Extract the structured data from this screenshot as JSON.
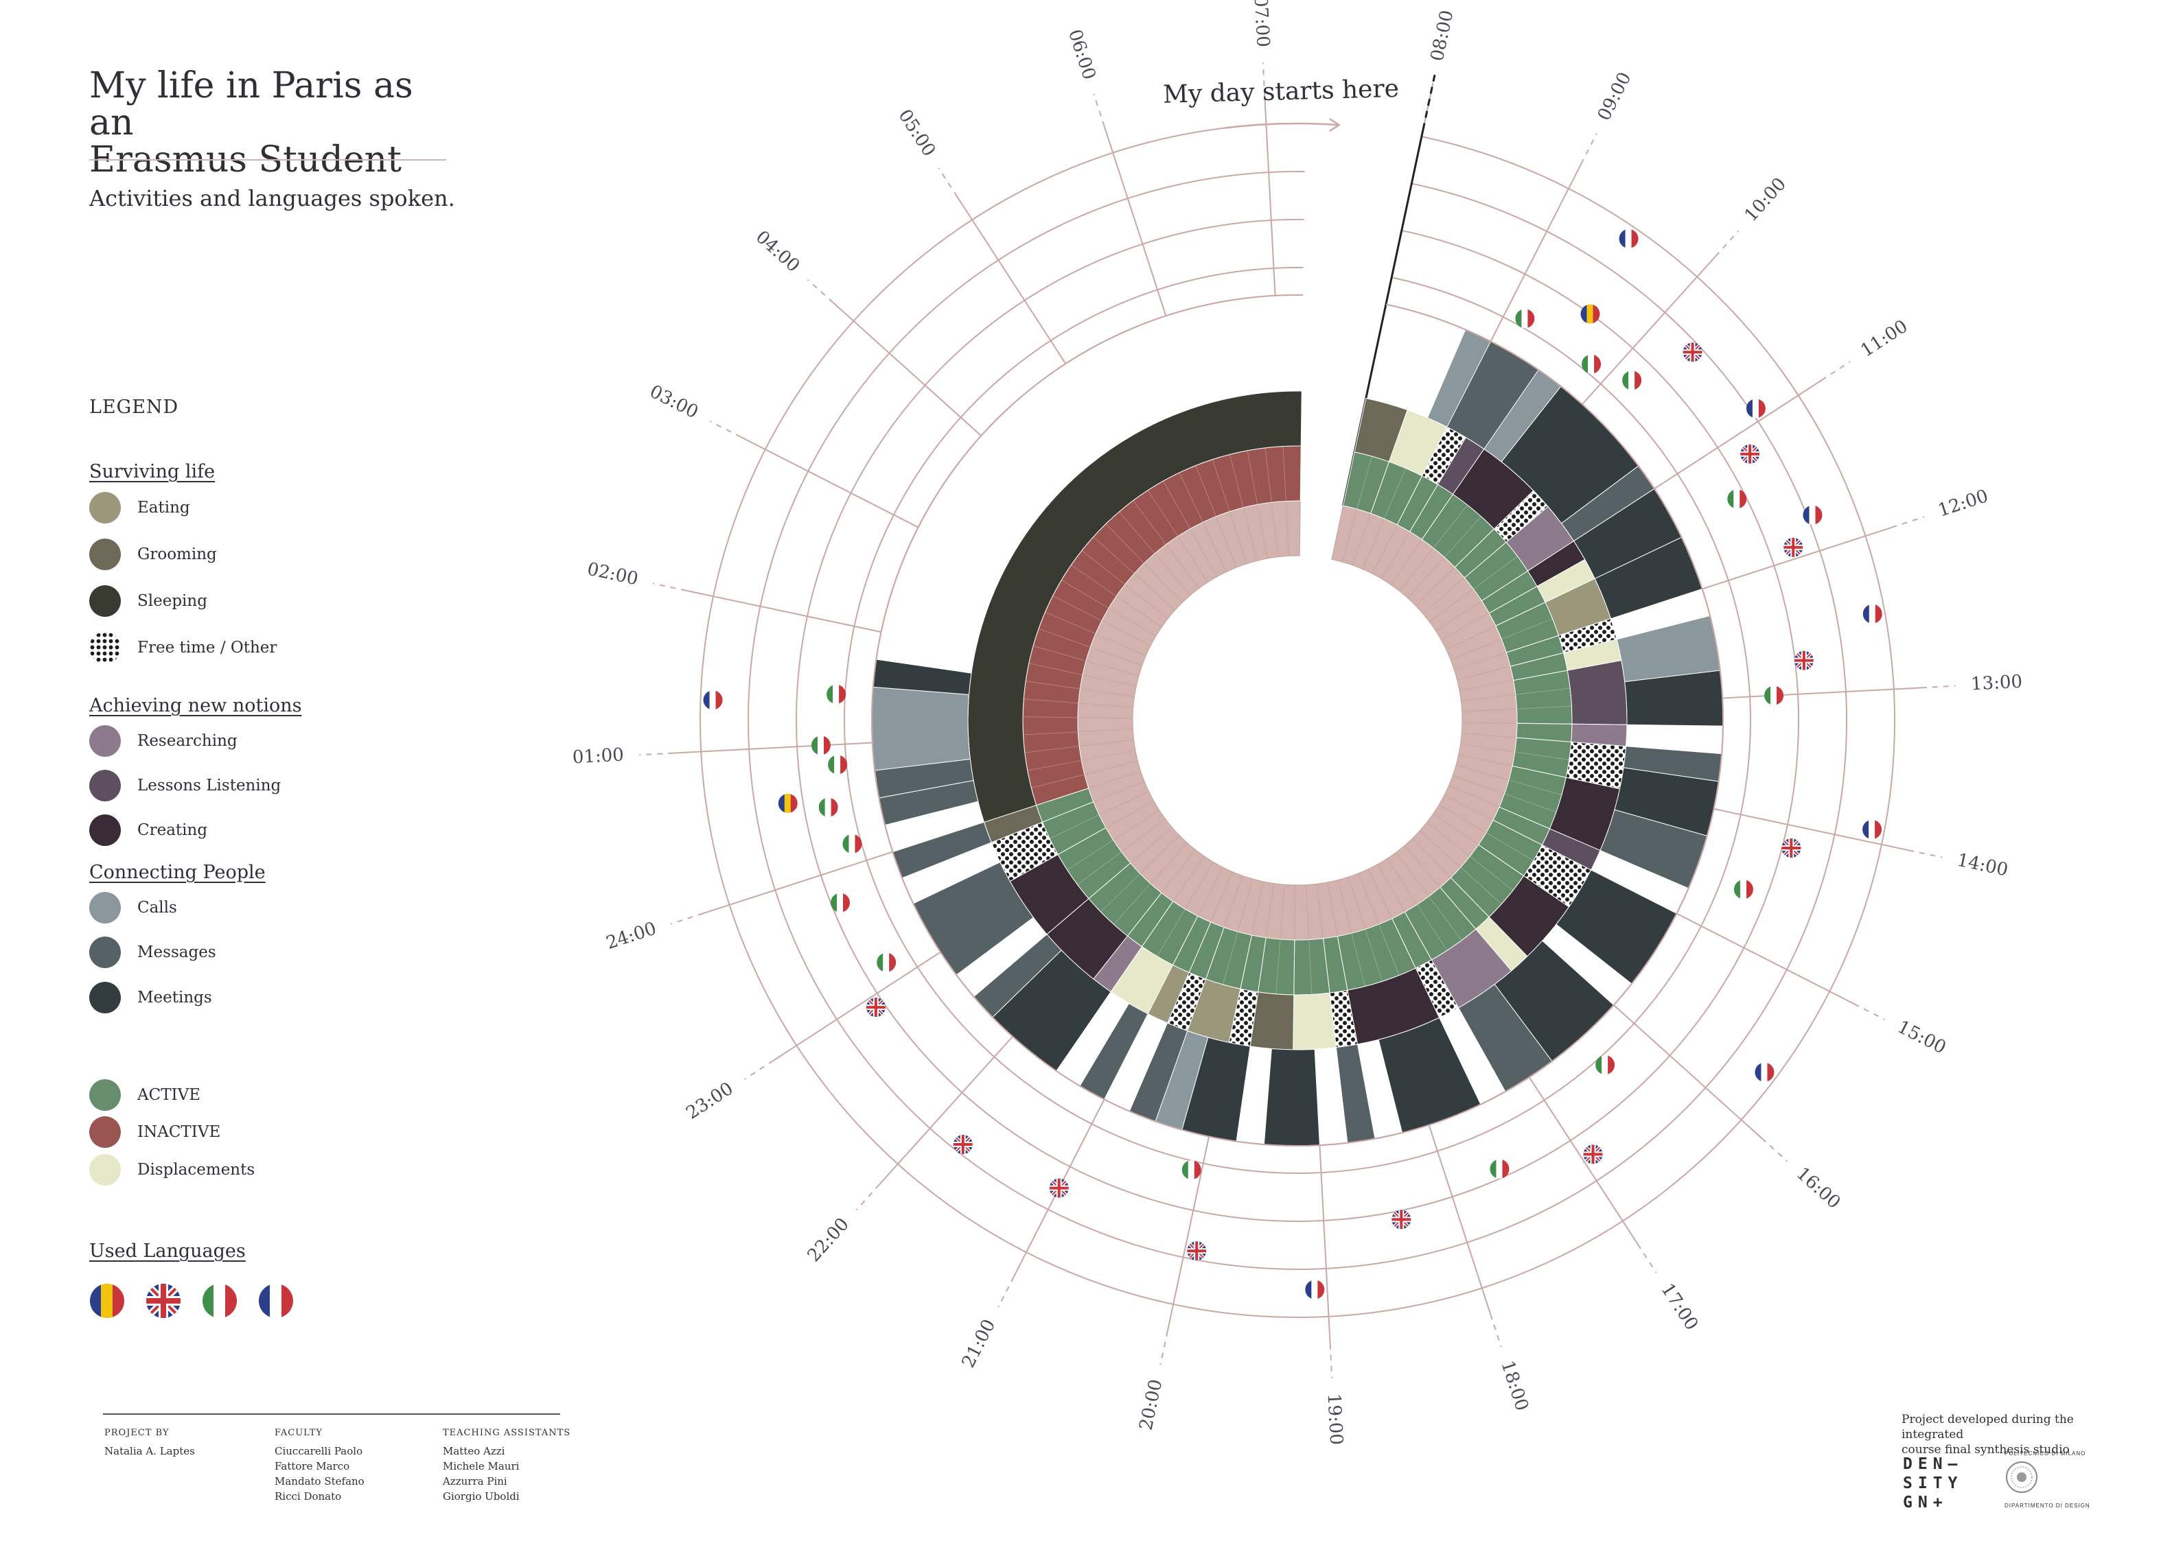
{
  "header": {
    "title_line1": "My life in Paris as an",
    "title_line2": "Erasmus Student",
    "subtitle": "Activities and languages spoken."
  },
  "legend": {
    "heading": "LEGEND",
    "sections": {
      "surviving": "Surviving life",
      "notions": "Achieving new notions",
      "people": "Connecting People",
      "languages": "Used Languages"
    },
    "items": {
      "eating": "Eating",
      "grooming": "Grooming",
      "sleeping": "Sleeping",
      "freetime": "Free time / Other",
      "researching": "Researching",
      "lessons": "Lessons Listening",
      "creating": "Creating",
      "calls": "Calls",
      "messages": "Messages",
      "meetings": "Meetings",
      "active": "ACTIVE",
      "inactive": "INACTIVE",
      "displacements": "Displacements"
    }
  },
  "colors": {
    "eating": "#9a977b",
    "grooming": "#6d6959",
    "sleeping": "#393a32",
    "researching": "#8d7a8c",
    "lessons": "#5e4f60",
    "creating": "#3a2c37",
    "calls": "#8a979d",
    "messages": "#566166",
    "meetings": "#333c3f",
    "active": "#678e6c",
    "inactive": "#9a5550",
    "displacements": "#e6e9c9",
    "inner": "#d3b3ae",
    "grid": "#c9a8a6"
  },
  "chart_data": {
    "type": "radial",
    "annotation": "My day starts here",
    "hour_labels": [
      "08:00",
      "09:00",
      "10:00",
      "11:00",
      "12:00",
      "13:00",
      "14:00",
      "15:00",
      "16:00",
      "17:00",
      "18:00",
      "19:00",
      "20:00",
      "21:00",
      "22:00",
      "23:00",
      "24:00",
      "01:00",
      "02:00",
      "03:00",
      "04:00",
      "05:00",
      "06:00",
      "07:00"
    ],
    "activities": [
      {
        "start": "08:00",
        "end": "08:30",
        "activity": "grooming",
        "state": "active"
      },
      {
        "start": "08:30",
        "end": "09:00",
        "activity": "displacements",
        "state": "active"
      },
      {
        "start": "09:00",
        "end": "09:15",
        "activity": "freetime",
        "state": "active"
      },
      {
        "start": "09:15",
        "end": "09:30",
        "activity": "lessons",
        "state": "active"
      },
      {
        "start": "09:30",
        "end": "10:15",
        "activity": "creating",
        "state": "active"
      },
      {
        "start": "10:15",
        "end": "10:30",
        "activity": "freetime",
        "state": "active"
      },
      {
        "start": "10:30",
        "end": "11:00",
        "activity": "researching",
        "state": "active"
      },
      {
        "start": "11:00",
        "end": "11:15",
        "activity": "creating",
        "state": "active"
      },
      {
        "start": "11:15",
        "end": "11:30",
        "activity": "displacements",
        "state": "active"
      },
      {
        "start": "11:30",
        "end": "12:00",
        "activity": "eating",
        "state": "active"
      },
      {
        "start": "12:00",
        "end": "12:15",
        "activity": "freetime",
        "state": "active"
      },
      {
        "start": "12:15",
        "end": "12:30",
        "activity": "displacements",
        "state": "active"
      },
      {
        "start": "12:30",
        "end": "13:15",
        "activity": "lessons",
        "state": "active"
      },
      {
        "start": "13:15",
        "end": "13:30",
        "activity": "researching",
        "state": "active"
      },
      {
        "start": "13:30",
        "end": "14:00",
        "activity": "freetime",
        "state": "active"
      },
      {
        "start": "14:00",
        "end": "14:45",
        "activity": "creating",
        "state": "active"
      },
      {
        "start": "14:45",
        "end": "15:00",
        "activity": "lessons",
        "state": "active"
      },
      {
        "start": "15:00",
        "end": "15:30",
        "activity": "freetime",
        "state": "active"
      },
      {
        "start": "15:30",
        "end": "16:15",
        "activity": "creating",
        "state": "active"
      },
      {
        "start": "16:15",
        "end": "16:30",
        "activity": "displacements",
        "state": "active"
      },
      {
        "start": "16:30",
        "end": "17:15",
        "activity": "researching",
        "state": "active"
      },
      {
        "start": "17:15",
        "end": "17:30",
        "activity": "freetime",
        "state": "active"
      },
      {
        "start": "17:30",
        "end": "18:30",
        "activity": "creating",
        "state": "active"
      },
      {
        "start": "18:30",
        "end": "18:45",
        "activity": "freetime",
        "state": "active"
      },
      {
        "start": "18:45",
        "end": "19:15",
        "activity": "displacements",
        "state": "active"
      },
      {
        "start": "19:15",
        "end": "19:45",
        "activity": "grooming",
        "state": "active"
      },
      {
        "start": "19:45",
        "end": "20:00",
        "activity": "freetime",
        "state": "active"
      },
      {
        "start": "20:00",
        "end": "20:30",
        "activity": "eating",
        "state": "active"
      },
      {
        "start": "20:30",
        "end": "20:45",
        "activity": "freetime",
        "state": "active"
      },
      {
        "start": "20:45",
        "end": "21:00",
        "activity": "eating",
        "state": "active"
      },
      {
        "start": "21:00",
        "end": "21:30",
        "activity": "displacements",
        "state": "active"
      },
      {
        "start": "21:30",
        "end": "21:45",
        "activity": "researching",
        "state": "active"
      },
      {
        "start": "21:45",
        "end": "22:30",
        "activity": "creating",
        "state": "active"
      },
      {
        "start": "22:30",
        "end": "23:15",
        "activity": "creating",
        "state": "active"
      },
      {
        "start": "23:15",
        "end": "23:45",
        "activity": "freetime",
        "state": "active"
      },
      {
        "start": "23:45",
        "end": "24:00",
        "activity": "grooming",
        "state": "active"
      },
      {
        "start": "24:00",
        "end": "07:15",
        "activity": "sleeping",
        "state": "inactive"
      }
    ],
    "communications": [
      {
        "start": "08:45",
        "end": "09:45",
        "type": "calls"
      },
      {
        "start": "09:00",
        "end": "09:30",
        "type": "messages"
      },
      {
        "start": "09:45",
        "end": "10:45",
        "type": "meetings"
      },
      {
        "start": "10:45",
        "end": "11:00",
        "type": "messages"
      },
      {
        "start": "11:00",
        "end": "11:30",
        "type": "meetings"
      },
      {
        "start": "11:30",
        "end": "12:00",
        "type": "meetings"
      },
      {
        "start": "12:15",
        "end": "12:45",
        "type": "calls"
      },
      {
        "start": "12:45",
        "end": "13:15",
        "type": "meetings"
      },
      {
        "start": "13:30",
        "end": "13:45",
        "type": "messages"
      },
      {
        "start": "13:45",
        "end": "14:15",
        "type": "meetings"
      },
      {
        "start": "14:15",
        "end": "14:45",
        "type": "messages"
      },
      {
        "start": "15:00",
        "end": "15:45",
        "type": "meetings"
      },
      {
        "start": "16:00",
        "end": "16:45",
        "type": "meetings"
      },
      {
        "start": "16:45",
        "end": "17:15",
        "type": "messages"
      },
      {
        "start": "17:30",
        "end": "18:15",
        "type": "meetings"
      },
      {
        "start": "18:30",
        "end": "18:45",
        "type": "messages"
      },
      {
        "start": "19:00",
        "end": "19:30",
        "type": "meetings"
      },
      {
        "start": "19:45",
        "end": "20:15",
        "type": "meetings"
      },
      {
        "start": "20:15",
        "end": "20:30",
        "type": "calls"
      },
      {
        "start": "20:30",
        "end": "20:45",
        "type": "messages"
      },
      {
        "start": "21:00",
        "end": "21:15",
        "type": "messages"
      },
      {
        "start": "21:30",
        "end": "22:15",
        "type": "meetings"
      },
      {
        "start": "22:15",
        "end": "22:30",
        "type": "messages"
      },
      {
        "start": "22:45",
        "end": "23:30",
        "type": "messages"
      },
      {
        "start": "23:45",
        "end": "24:00",
        "type": "messages"
      },
      {
        "start": "00:15",
        "end": "00:30",
        "type": "messages"
      },
      {
        "start": "00:30",
        "end": "00:45",
        "type": "messages"
      },
      {
        "start": "00:45",
        "end": "01:30",
        "type": "calls"
      },
      {
        "start": "01:30",
        "end": "01:45",
        "type": "meetings"
      }
    ],
    "languages": [
      {
        "time": "09:10",
        "lang": "it"
      },
      {
        "time": "09:35",
        "lang": "ro"
      },
      {
        "time": "09:30",
        "lang": "fr"
      },
      {
        "time": "09:50",
        "lang": "it"
      },
      {
        "time": "10:10",
        "lang": "it"
      },
      {
        "time": "10:20",
        "lang": "en"
      },
      {
        "time": "10:55",
        "lang": "fr"
      },
      {
        "time": "11:10",
        "lang": "en"
      },
      {
        "time": "11:25",
        "lang": "it"
      },
      {
        "time": "11:45",
        "lang": "fr"
      },
      {
        "time": "11:55",
        "lang": "en"
      },
      {
        "time": "12:30",
        "lang": "fr"
      },
      {
        "time": "12:45",
        "lang": "en"
      },
      {
        "time": "13:00",
        "lang": "it"
      },
      {
        "time": "13:55",
        "lang": "fr"
      },
      {
        "time": "14:10",
        "lang": "en"
      },
      {
        "time": "14:35",
        "lang": "it"
      },
      {
        "time": "15:40",
        "lang": "fr"
      },
      {
        "time": "16:25",
        "lang": "it"
      },
      {
        "time": "16:55",
        "lang": "en"
      },
      {
        "time": "17:35",
        "lang": "it"
      },
      {
        "time": "18:25",
        "lang": "en"
      },
      {
        "time": "19:05",
        "lang": "fr"
      },
      {
        "time": "19:55",
        "lang": "en"
      },
      {
        "time": "20:05",
        "lang": "it"
      },
      {
        "time": "21:00",
        "lang": "en"
      },
      {
        "time": "21:45",
        "lang": "en"
      },
      {
        "time": "22:55",
        "lang": "en"
      },
      {
        "time": "23:10",
        "lang": "it"
      },
      {
        "time": "23:45",
        "lang": "it"
      },
      {
        "time": "00:10",
        "lang": "it"
      },
      {
        "time": "00:30",
        "lang": "it"
      },
      {
        "time": "00:35",
        "lang": "ro"
      },
      {
        "time": "00:50",
        "lang": "it"
      },
      {
        "time": "01:00",
        "lang": "it"
      },
      {
        "time": "01:20",
        "lang": "fr"
      },
      {
        "time": "01:25",
        "lang": "it"
      }
    ]
  },
  "credits": {
    "project_by": {
      "heading": "PROJECT BY",
      "names": [
        "Natalia A. Laptes"
      ]
    },
    "faculty": {
      "heading": "FACULTY",
      "names": [
        "Ciuccarelli Paolo",
        "Fattore Marco",
        "Mandato Stefano",
        "Ricci Donato"
      ]
    },
    "assistants": {
      "heading": "TEACHING ASSISTANTS",
      "names": [
        "Matteo Azzi",
        "Michele Mauri",
        "Azzurra Pini",
        "Giorgio Uboldi"
      ]
    }
  },
  "footer": {
    "note_line1": "Project developed during the integrated",
    "note_line2": "course final synthesis studio",
    "studio_logo_l1": "DEN–",
    "studio_logo_l2": "SITY",
    "studio_logo_l3": "GN+",
    "polimi_top": "POLITECNICO DI MILANO",
    "polimi_bottom": "DIPARTIMENTO DI DESIGN"
  }
}
